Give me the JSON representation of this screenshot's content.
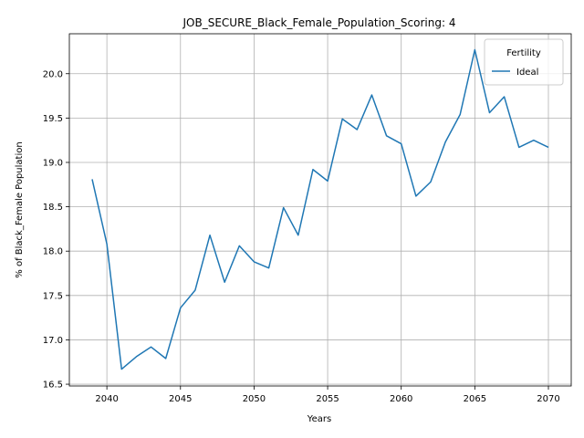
{
  "chart_data": {
    "type": "line",
    "title": "JOB_SECURE_Black_Female_Population_Scoring: 4",
    "xlabel": "Years",
    "ylabel": "% of Black_Female Population",
    "xlim": [
      2037.45,
      2071.55
    ],
    "ylim": [
      16.48,
      20.45
    ],
    "x_ticks": [
      2040,
      2045,
      2050,
      2055,
      2060,
      2065,
      2070
    ],
    "y_ticks": [
      16.5,
      17.0,
      17.5,
      18.0,
      18.5,
      19.0,
      19.5,
      20.0
    ],
    "y_tick_labels": [
      "16.5",
      "17.0",
      "17.5",
      "18.0",
      "18.5",
      "19.0",
      "19.5",
      "20.0"
    ],
    "grid": true,
    "legend": {
      "title": "Fertility",
      "placement": "top-right"
    },
    "series": [
      {
        "name": "Ideal",
        "color": "#1f77b4",
        "x": [
          2039,
          2040,
          2041,
          2042,
          2043,
          2044,
          2045,
          2046,
          2047,
          2048,
          2049,
          2050,
          2051,
          2052,
          2053,
          2054,
          2055,
          2056,
          2057,
          2058,
          2059,
          2060,
          2061,
          2062,
          2063,
          2064,
          2065,
          2066,
          2067,
          2068,
          2069,
          2070
        ],
        "values": [
          18.81,
          18.08,
          16.67,
          16.81,
          16.92,
          16.79,
          17.36,
          17.56,
          18.18,
          17.65,
          18.06,
          17.88,
          17.81,
          18.49,
          18.18,
          18.92,
          18.79,
          19.49,
          19.37,
          19.76,
          19.3,
          19.21,
          18.62,
          18.78,
          19.23,
          19.54,
          20.27,
          19.56,
          19.74,
          19.17,
          19.25,
          19.17
        ]
      }
    ]
  }
}
